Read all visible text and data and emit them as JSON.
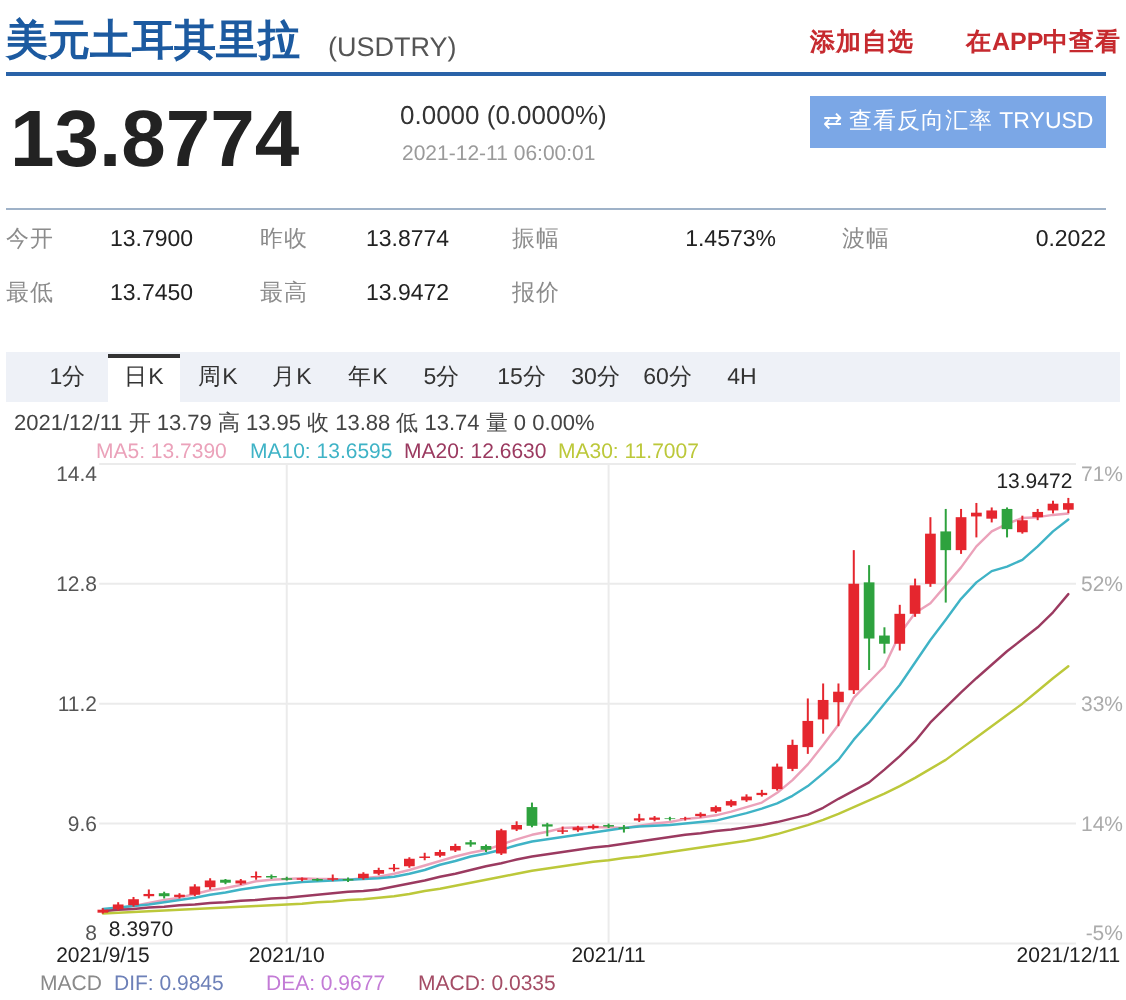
{
  "chart_data": {
    "type": "candlestick",
    "title": "美元土耳其里拉",
    "subtitle": "(USDTRY)",
    "categories": [
      "2021/9/15",
      null,
      null,
      null,
      null,
      null,
      null,
      null,
      null,
      null,
      null,
      null,
      "2021/10",
      null,
      null,
      null,
      null,
      null,
      null,
      null,
      null,
      null,
      null,
      null,
      null,
      null,
      null,
      null,
      null,
      null,
      null,
      null,
      null,
      "2021/11",
      null,
      null,
      null,
      null,
      null,
      null,
      null,
      null,
      null,
      null,
      null,
      null,
      null,
      null,
      null,
      null,
      null,
      null,
      null,
      null,
      null,
      null,
      null,
      null,
      null,
      null,
      null,
      null,
      null,
      "2021/12/11"
    ],
    "ohlc": [
      [
        8.41,
        8.47,
        8.397,
        8.45
      ],
      [
        8.46,
        8.55,
        8.44,
        8.52
      ],
      [
        8.51,
        8.62,
        8.49,
        8.59
      ],
      [
        8.63,
        8.72,
        8.6,
        8.66
      ],
      [
        8.67,
        8.69,
        8.6,
        8.63
      ],
      [
        8.62,
        8.67,
        8.6,
        8.65
      ],
      [
        8.65,
        8.79,
        8.63,
        8.76
      ],
      [
        8.75,
        8.87,
        8.72,
        8.84
      ],
      [
        8.85,
        8.86,
        8.79,
        8.81
      ],
      [
        8.8,
        8.86,
        8.78,
        8.84
      ],
      [
        8.88,
        8.96,
        8.85,
        8.9
      ],
      [
        8.9,
        8.92,
        8.86,
        8.88
      ],
      [
        8.87,
        8.89,
        8.84,
        8.85
      ],
      [
        8.85,
        8.88,
        8.83,
        8.87
      ],
      [
        8.86,
        8.87,
        8.83,
        8.84
      ],
      [
        8.85,
        8.92,
        8.83,
        8.87
      ],
      [
        8.86,
        8.88,
        8.82,
        8.84
      ],
      [
        8.87,
        8.95,
        8.85,
        8.93
      ],
      [
        8.93,
        9.01,
        8.91,
        8.98
      ],
      [
        8.99,
        9.06,
        8.96,
        9.01
      ],
      [
        9.03,
        9.15,
        9.01,
        9.13
      ],
      [
        9.14,
        9.21,
        9.11,
        9.16
      ],
      [
        9.17,
        9.25,
        9.15,
        9.22
      ],
      [
        9.24,
        9.33,
        9.22,
        9.3
      ],
      [
        9.35,
        9.38,
        9.29,
        9.32
      ],
      [
        9.3,
        9.32,
        9.22,
        9.25
      ],
      [
        9.2,
        9.53,
        9.18,
        9.51
      ],
      [
        9.52,
        9.63,
        9.5,
        9.58
      ],
      [
        9.82,
        9.88,
        9.55,
        9.57
      ],
      [
        9.59,
        9.61,
        9.43,
        9.56
      ],
      [
        9.49,
        9.56,
        9.46,
        9.51
      ],
      [
        9.51,
        9.57,
        9.49,
        9.55
      ],
      [
        9.54,
        9.59,
        9.52,
        9.57
      ],
      [
        9.58,
        9.6,
        9.54,
        9.56
      ],
      [
        9.55,
        9.58,
        9.48,
        9.53
      ],
      [
        9.64,
        9.73,
        9.62,
        9.67
      ],
      [
        9.65,
        9.7,
        9.63,
        9.68
      ],
      [
        9.67,
        9.69,
        9.64,
        9.66
      ],
      [
        9.66,
        9.69,
        9.64,
        9.67
      ],
      [
        9.7,
        9.75,
        9.68,
        9.73
      ],
      [
        9.76,
        9.84,
        9.74,
        9.82
      ],
      [
        9.84,
        9.92,
        9.82,
        9.9
      ],
      [
        9.91,
        9.99,
        9.89,
        9.96
      ],
      [
        9.98,
        10.05,
        9.96,
        10.01
      ],
      [
        10.06,
        10.4,
        10.04,
        10.36
      ],
      [
        10.33,
        10.72,
        10.3,
        10.65
      ],
      [
        10.62,
        11.27,
        10.53,
        10.97
      ],
      [
        10.99,
        11.47,
        10.8,
        11.25
      ],
      [
        11.22,
        11.47,
        10.9,
        11.36
      ],
      [
        11.38,
        13.25,
        11.33,
        12.8
      ],
      [
        12.82,
        13.05,
        11.65,
        12.07
      ],
      [
        12.11,
        12.22,
        11.87,
        12.0
      ],
      [
        12.0,
        12.52,
        11.91,
        12.4
      ],
      [
        12.4,
        12.87,
        12.36,
        12.78
      ],
      [
        12.8,
        13.69,
        12.76,
        13.47
      ],
      [
        13.5,
        13.8,
        12.55,
        13.25
      ],
      [
        13.25,
        13.8,
        13.2,
        13.69
      ],
      [
        13.7,
        13.88,
        13.42,
        13.75
      ],
      [
        13.67,
        13.82,
        13.62,
        13.78
      ],
      [
        13.8,
        13.82,
        13.42,
        13.53
      ],
      [
        13.49,
        13.71,
        13.47,
        13.65
      ],
      [
        13.69,
        13.8,
        13.65,
        13.76
      ],
      [
        13.78,
        13.91,
        13.74,
        13.87
      ],
      [
        13.79,
        13.9472,
        13.745,
        13.8774
      ]
    ],
    "colors": [
      "#e5262e",
      "#e5262e",
      "#e5262e",
      "#e5262e",
      "#2ea23e",
      "#e5262e",
      "#e5262e",
      "#e5262e",
      "#2ea23e",
      "#e5262e",
      "#e5262e",
      "#2ea23e",
      "#2ea23e",
      "#e5262e",
      "#2ea23e",
      "#e5262e",
      "#2ea23e",
      "#e5262e",
      "#e5262e",
      "#e5262e",
      "#e5262e",
      "#e5262e",
      "#e5262e",
      "#e5262e",
      "#2ea23e",
      "#2ea23e",
      "#e5262e",
      "#e5262e",
      "#2ea23e",
      "#2ea23e",
      "#e5262e",
      "#e5262e",
      "#e5262e",
      "#2ea23e",
      "#2ea23e",
      "#e5262e",
      "#e5262e",
      "#2ea23e",
      "#e5262e",
      "#e5262e",
      "#e5262e",
      "#e5262e",
      "#e5262e",
      "#e5262e",
      "#e5262e",
      "#e5262e",
      "#e5262e",
      "#e5262e",
      "#e5262e",
      "#e5262e",
      "#2ea23e",
      "#2ea23e",
      "#e5262e",
      "#e5262e",
      "#e5262e",
      "#2ea23e",
      "#e5262e",
      "#e5262e",
      "#e5262e",
      "#2ea23e",
      "#e5262e",
      "#e5262e",
      "#e5262e",
      "#e5262e"
    ],
    "series": [
      {
        "name": "MA5: 13.7390",
        "type": "line",
        "color": "#eba2ba",
        "values": [
          8.45,
          8.47,
          8.5,
          8.54,
          8.58,
          8.61,
          8.66,
          8.71,
          8.74,
          8.78,
          8.83,
          8.85,
          8.86,
          8.87,
          8.86,
          8.86,
          8.85,
          8.87,
          8.89,
          8.93,
          8.98,
          9.04,
          9.1,
          9.16,
          9.21,
          9.25,
          9.32,
          9.39,
          9.45,
          9.49,
          9.54,
          9.55,
          9.55,
          9.55,
          9.54,
          9.57,
          9.6,
          9.62,
          9.66,
          9.68,
          9.71,
          9.76,
          9.82,
          9.88,
          10.01,
          10.18,
          10.39,
          10.65,
          10.92,
          11.28,
          11.49,
          11.7,
          12.13,
          12.41,
          12.54,
          12.78,
          13.02,
          13.3,
          13.5,
          13.6,
          13.68,
          13.69,
          13.72,
          13.739
        ]
      },
      {
        "name": "MA10: 13.6595",
        "type": "line",
        "color": "#3fb3c6",
        "values": [
          8.46,
          8.48,
          8.5,
          8.52,
          8.55,
          8.58,
          8.61,
          8.65,
          8.68,
          8.72,
          8.75,
          8.78,
          8.8,
          8.82,
          8.83,
          8.84,
          8.85,
          8.86,
          8.87,
          8.89,
          8.93,
          8.98,
          9.05,
          9.1,
          9.16,
          9.2,
          9.25,
          9.31,
          9.36,
          9.39,
          9.42,
          9.45,
          9.48,
          9.51,
          9.54,
          9.56,
          9.57,
          9.58,
          9.6,
          9.62,
          9.64,
          9.69,
          9.74,
          9.8,
          9.87,
          9.97,
          10.1,
          10.27,
          10.45,
          10.72,
          10.95,
          11.2,
          11.45,
          11.75,
          12.05,
          12.32,
          12.6,
          12.82,
          12.97,
          13.03,
          13.12,
          13.3,
          13.5,
          13.6595
        ]
      },
      {
        "name": "MA20: 12.6630",
        "type": "line",
        "color": "#9b3a60",
        "values": [
          8.43,
          8.45,
          8.46,
          8.48,
          8.49,
          8.51,
          8.52,
          8.54,
          8.55,
          8.57,
          8.58,
          8.6,
          8.61,
          8.63,
          8.65,
          8.67,
          8.69,
          8.7,
          8.72,
          8.76,
          8.8,
          8.84,
          8.89,
          8.93,
          8.98,
          9.03,
          9.07,
          9.12,
          9.16,
          9.19,
          9.22,
          9.25,
          9.28,
          9.3,
          9.33,
          9.36,
          9.39,
          9.42,
          9.45,
          9.47,
          9.5,
          9.52,
          9.55,
          9.58,
          9.62,
          9.67,
          9.72,
          9.81,
          9.93,
          10.04,
          10.15,
          10.32,
          10.5,
          10.7,
          10.95,
          11.15,
          11.35,
          11.54,
          11.72,
          11.9,
          12.06,
          12.22,
          12.42,
          12.663
        ]
      },
      {
        "name": "MA30: 11.7007",
        "type": "line",
        "color": "#bcc83a",
        "values": [
          8.4,
          8.41,
          8.42,
          8.43,
          8.44,
          8.45,
          8.46,
          8.47,
          8.48,
          8.49,
          8.5,
          8.51,
          8.52,
          8.53,
          8.55,
          8.56,
          8.58,
          8.59,
          8.61,
          8.63,
          8.66,
          8.7,
          8.73,
          8.77,
          8.81,
          8.85,
          8.89,
          8.93,
          8.97,
          9.0,
          9.03,
          9.06,
          9.09,
          9.11,
          9.14,
          9.16,
          9.19,
          9.22,
          9.25,
          9.28,
          9.31,
          9.34,
          9.37,
          9.41,
          9.46,
          9.52,
          9.58,
          9.65,
          9.73,
          9.82,
          9.91,
          10.0,
          10.1,
          10.21,
          10.33,
          10.45,
          10.6,
          10.75,
          10.9,
          11.05,
          11.2,
          11.37,
          11.54,
          11.7007
        ]
      }
    ],
    "ylim": [
      8,
      14.4
    ],
    "yticks": [
      8,
      9.6,
      11.2,
      12.8,
      14.4
    ],
    "y2lim": [
      -4.7,
      71.5
    ],
    "y2ticks": [
      {
        "value": -4.7,
        "label": "-5%"
      },
      {
        "value": 14.3,
        "label": "14%"
      },
      {
        "value": 33.4,
        "label": "33%"
      },
      {
        "value": 52.4,
        "label": "52%"
      },
      {
        "value": 71.5,
        "label": "71%"
      }
    ],
    "grid": true,
    "legend": "top left",
    "annotations": [
      "添加自选",
      "在APP中查看",
      "13.8774",
      "0.0000 (0.0000%)",
      "2021-12-11 06:00:01",
      "⇄ 查看反向汇率 TRYUSD",
      "今开",
      "13.7900",
      "昨收",
      "13.8774",
      "振幅",
      "1.4573%",
      "波幅",
      "0.2022",
      "最低",
      "13.7450",
      "最高",
      "13.9472",
      "报价",
      "1分",
      "日K",
      "周K",
      "月K",
      "年K",
      "5分",
      "15分",
      "30分",
      "60分",
      "4H",
      "2021/12/11 开 13.79 高 13.95 收 13.88 低 13.74 量 0 0.00%",
      "MACD",
      "DIF: 0.9845",
      "DEA: 0.9677",
      "MACD: 0.0335",
      {
        "text": "8.3970",
        "x": "2021/9/15",
        "y": 8.397
      },
      {
        "text": "13.9472",
        "x": "2021/12/11",
        "y": 13.9472
      }
    ]
  }
}
